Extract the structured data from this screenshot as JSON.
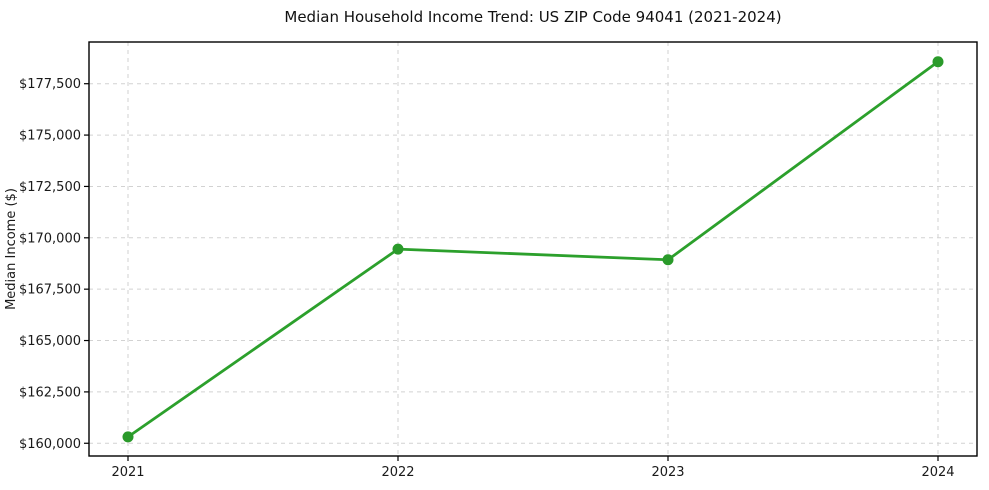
{
  "chart_data": {
    "type": "line",
    "title": "Median Household Income Trend: US ZIP Code 94041 (2021-2024)",
    "xlabel": "",
    "ylabel": "Median Income ($)",
    "categories": [
      "2021",
      "2022",
      "2023",
      "2024"
    ],
    "series": [
      {
        "name": "Median Household Income",
        "values": [
          160310,
          169450,
          168930,
          178570
        ]
      }
    ],
    "ylim": [
      159380,
      179530
    ],
    "y_ticks": [
      {
        "value": 160000,
        "label": "$160,000"
      },
      {
        "value": 162500,
        "label": "$162,500"
      },
      {
        "value": 165000,
        "label": "$165,000"
      },
      {
        "value": 167500,
        "label": "$167,500"
      },
      {
        "value": 170000,
        "label": "$170,000"
      },
      {
        "value": 172500,
        "label": "$172,500"
      },
      {
        "value": 175000,
        "label": "$175,000"
      },
      {
        "value": 177500,
        "label": "$177,500"
      }
    ],
    "grid": true,
    "grid_style": "dashed",
    "legend": "none",
    "line_color": "#2ca02c",
    "marker_color": "#2a9a2a"
  }
}
